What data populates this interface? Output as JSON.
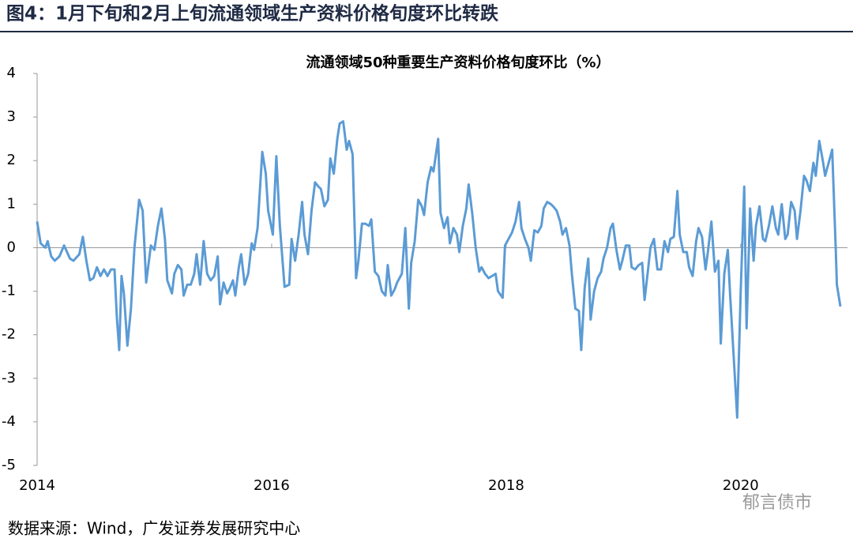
{
  "header": {
    "title": "图4：1月下旬和2月上旬流通领域生产资料价格旬度环比转跌"
  },
  "chart_data": {
    "type": "line",
    "title": "流通领域50种重要生产资料价格旬度环比（%）",
    "color": "#5b9bd5",
    "xlim": [
      2014,
      2020.87
    ],
    "xticks": [
      2014,
      2016,
      2018,
      2020
    ],
    "ylim": [
      -5,
      4
    ],
    "yticks": [
      -5,
      -4,
      -3,
      -2,
      -1,
      0,
      1,
      2,
      3,
      4
    ],
    "x": [
      2014.0,
      2014.03,
      2014.07,
      2014.09,
      2014.12,
      2014.15,
      2014.19,
      2014.23,
      2014.28,
      2014.31,
      2014.36,
      2014.39,
      2014.42,
      2014.45,
      2014.48,
      2014.51,
      2014.54,
      2014.57,
      2014.6,
      2014.63,
      2014.66,
      2014.68,
      2014.7,
      2014.72,
      2014.74,
      2014.77,
      2014.8,
      2014.83,
      2014.87,
      2014.9,
      2014.93,
      2014.97,
      2015.0,
      2015.03,
      2015.06,
      2015.09,
      2015.11,
      2015.15,
      2015.17,
      2015.2,
      2015.23,
      2015.25,
      2015.28,
      2015.31,
      2015.34,
      2015.36,
      2015.39,
      2015.42,
      2015.45,
      2015.48,
      2015.51,
      2015.54,
      2015.56,
      2015.59,
      2015.62,
      2015.64,
      2015.67,
      2015.69,
      2015.72,
      2015.74,
      2015.77,
      2015.8,
      2015.83,
      2015.85,
      2015.88,
      2015.92,
      2015.95,
      2015.97,
      2016.01,
      2016.04,
      2016.07,
      2016.09,
      2016.11,
      2016.15,
      2016.17,
      2016.2,
      2016.23,
      2016.26,
      2016.28,
      2016.31,
      2016.34,
      2016.37,
      2016.4,
      2016.42,
      2016.45,
      2016.48,
      2016.5,
      2016.53,
      2016.56,
      2016.58,
      2016.61,
      2016.64,
      2016.66,
      2016.69,
      2016.72,
      2016.74,
      2016.77,
      2016.8,
      2016.83,
      2016.85,
      2016.88,
      2016.91,
      2016.94,
      2016.97,
      2016.99,
      2017.02,
      2017.05,
      2017.07,
      2017.11,
      2017.14,
      2017.17,
      2017.19,
      2017.22,
      2017.25,
      2017.28,
      2017.3,
      2017.33,
      2017.36,
      2017.38,
      2017.42,
      2017.44,
      2017.47,
      2017.5,
      2017.52,
      2017.55,
      2017.58,
      2017.6,
      2017.63,
      2017.66,
      2017.68,
      2017.71,
      2017.74,
      2017.77,
      2017.79,
      2017.82,
      2017.85,
      2017.88,
      2017.91,
      2017.93,
      2017.97,
      2017.99,
      2018.03,
      2018.05,
      2018.08,
      2018.11,
      2018.13,
      2018.16,
      2018.19,
      2018.21,
      2018.24,
      2018.27,
      2018.3,
      2018.32,
      2018.35,
      2018.38,
      2018.4,
      2018.43,
      2018.46,
      2018.48,
      2018.51,
      2018.54,
      2018.56,
      2018.59,
      2018.62,
      2018.64,
      2018.67,
      2018.7,
      2018.72,
      2018.75,
      2018.78,
      2018.81,
      2018.83,
      2018.86,
      2018.89,
      2018.91,
      2018.94,
      2018.97,
      2018.99,
      2019.02,
      2019.05,
      2019.07,
      2019.1,
      2019.13,
      2019.16,
      2019.18,
      2019.21,
      2019.23,
      2019.26,
      2019.29,
      2019.32,
      2019.35,
      2019.38,
      2019.4,
      2019.43,
      2019.46,
      2019.48,
      2019.51,
      2019.54,
      2019.56,
      2019.59,
      2019.62,
      2019.64,
      2019.67,
      2019.7,
      2019.72,
      2019.75,
      2019.78,
      2019.81,
      2019.83,
      2019.86,
      2019.89,
      2019.91,
      2019.94,
      2019.97,
      2020.0,
      2020.03,
      2020.05,
      2020.08,
      2020.11,
      2020.13,
      2020.16,
      2020.19,
      2020.21,
      2020.24,
      2020.27,
      2020.3,
      2020.32,
      2020.35,
      2020.38,
      2020.4,
      2020.43,
      2020.46,
      2020.48,
      2020.51,
      2020.54,
      2020.56,
      2020.59,
      2020.62,
      2020.64,
      2020.67,
      2020.7,
      2020.72,
      2020.75,
      2020.78,
      2020.81,
      2020.82,
      2020.85
    ],
    "values": [
      0.6,
      0.1,
      0.0,
      0.15,
      -0.2,
      -0.3,
      -0.2,
      0.05,
      -0.25,
      -0.3,
      -0.15,
      0.25,
      -0.3,
      -0.75,
      -0.7,
      -0.45,
      -0.65,
      -0.5,
      -0.65,
      -0.5,
      -0.5,
      -1.6,
      -2.35,
      -0.65,
      -1.05,
      -2.25,
      -1.4,
      0.0,
      1.1,
      0.85,
      -0.8,
      0.05,
      -0.05,
      0.5,
      0.9,
      0.2,
      -0.75,
      -1.05,
      -0.6,
      -0.4,
      -0.5,
      -1.1,
      -0.85,
      -0.85,
      -0.6,
      -0.15,
      -0.85,
      0.15,
      -0.6,
      -0.75,
      -0.65,
      -0.2,
      -1.3,
      -0.8,
      -1.05,
      -0.95,
      -0.75,
      -1.1,
      -0.45,
      -0.15,
      -0.85,
      -0.6,
      0.1,
      -0.05,
      0.45,
      2.2,
      1.7,
      0.85,
      0.3,
      2.1,
      0.5,
      -0.2,
      -0.9,
      -0.85,
      0.2,
      -0.3,
      0.3,
      1.05,
      0.3,
      -0.15,
      0.85,
      1.5,
      1.4,
      1.35,
      0.95,
      1.1,
      2.05,
      1.7,
      2.5,
      2.85,
      2.9,
      2.25,
      2.45,
      2.15,
      -0.7,
      -0.3,
      0.55,
      0.55,
      0.5,
      0.65,
      -0.55,
      -0.65,
      -1.0,
      -1.1,
      -0.4,
      -1.1,
      -0.95,
      -0.8,
      -0.6,
      0.45,
      -1.4,
      -0.35,
      0.15,
      1.1,
      0.95,
      0.75,
      1.5,
      1.85,
      1.75,
      2.5,
      0.8,
      0.45,
      0.7,
      0.1,
      0.45,
      0.3,
      -0.1,
      0.5,
      0.9,
      1.45,
      0.8,
      0.0,
      -0.55,
      -0.45,
      -0.6,
      -0.7,
      -0.65,
      -0.6,
      -1.0,
      -1.15,
      0.05,
      0.25,
      0.35,
      0.6,
      1.05,
      0.45,
      0.2,
      0.0,
      -0.3,
      0.4,
      0.35,
      0.5,
      0.9,
      1.05,
      1.0,
      0.95,
      0.85,
      0.6,
      0.3,
      0.45,
      0.05,
      -0.6,
      -1.4,
      -1.45,
      -2.35,
      -0.9,
      -0.25,
      -1.65,
      -1.0,
      -0.7,
      -0.55,
      -0.25,
      0.0,
      0.45,
      0.55,
      -0.05,
      -0.5,
      -0.3,
      0.05,
      0.05,
      -0.45,
      -0.5,
      -0.4,
      -0.35,
      -1.2,
      -0.5,
      0.0,
      0.2,
      -0.5,
      -0.5,
      0.15,
      -0.1,
      0.2,
      0.25,
      1.3,
      0.3,
      -0.1,
      -0.1,
      -0.45,
      -0.65,
      0.15,
      0.45,
      0.25,
      -0.5,
      -0.1,
      0.6,
      -0.55,
      -0.3,
      -2.2,
      -0.6,
      -0.05,
      -1.1,
      -2.5,
      -3.9,
      -1.0,
      1.4,
      -1.85,
      0.9,
      -0.3,
      0.5,
      0.95,
      0.2,
      0.15,
      0.5,
      0.95,
      0.45,
      0.3,
      1.0,
      0.2,
      0.3,
      1.05,
      0.85,
      0.2,
      0.85,
      1.65,
      1.55,
      1.3,
      1.95,
      1.65,
      2.45,
      2.0,
      1.65,
      1.95,
      2.25,
      0.0,
      -0.85,
      -1.35
    ]
  },
  "source": "数据来源：Wind，广发证券发展研究中心",
  "watermark": "郁言债市"
}
